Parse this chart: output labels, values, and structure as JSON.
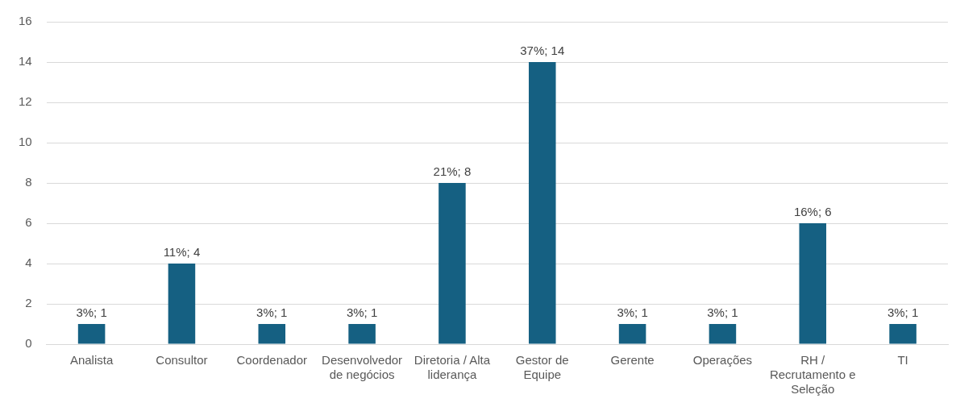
{
  "chart_data": {
    "type": "bar",
    "categories": [
      "Analista",
      "Consultor",
      "Coordenador",
      "Desenvolvedor de negócios",
      "Diretoria / Alta liderança",
      "Gestor de Equipe",
      "Gerente",
      "Operações",
      "RH / Recrutamento e Seleção",
      "TI"
    ],
    "values": [
      1,
      4,
      1,
      1,
      8,
      14,
      1,
      1,
      6,
      1
    ],
    "value_labels": [
      "3%; 1",
      "11%; 4",
      "3%; 1",
      "3%; 1",
      "21%; 8",
      "37%; 14",
      "3%; 1",
      "3%; 1",
      "16%; 6",
      "3%; 1"
    ],
    "color": "#156082",
    "ylim": [
      0,
      16
    ],
    "yticks": [
      0,
      2,
      4,
      6,
      8,
      10,
      12,
      14,
      16
    ],
    "grid": "y",
    "legend": false
  }
}
